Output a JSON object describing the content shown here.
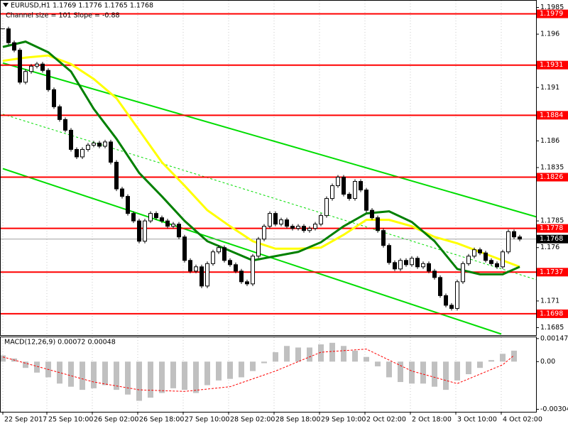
{
  "chart_data": {
    "type": "candlestick",
    "title": "EURUSD,H1 1.1769 1.1776 1.1765 1.1768",
    "subtitle": "Channel size = 101 Slope = -0.88",
    "close": [
      1.1965,
      1.1952,
      1.1945,
      1.1915,
      1.1925,
      1.193,
      1.1932,
      1.1926,
      1.1908,
      1.1892,
      1.188,
      1.187,
      1.1852,
      1.1845,
      1.1852,
      1.1856,
      1.1858,
      1.1855,
      1.1859,
      1.184,
      1.1815,
      1.1808,
      1.1792,
      1.1785,
      1.1766,
      1.1785,
      1.1792,
      1.1788,
      1.1785,
      1.178,
      1.1782,
      1.177,
      1.1748,
      1.1738,
      1.1742,
      1.1724,
      1.1745,
      1.1756,
      1.176,
      1.1748,
      1.1744,
      1.1738,
      1.1728,
      1.1726,
      1.1752,
      1.1768,
      1.178,
      1.1792,
      1.1782,
      1.1786,
      1.178,
      1.1778,
      1.178,
      1.1776,
      1.1778,
      1.1782,
      1.179,
      1.1806,
      1.1818,
      1.1826,
      1.181,
      1.1806,
      1.1822,
      1.1814,
      1.1795,
      1.1788,
      1.1776,
      1.1762,
      1.1746,
      1.174,
      1.1748,
      1.1744,
      1.175,
      1.1742,
      1.1745,
      1.1738,
      1.1732,
      1.1715,
      1.1706,
      1.1703,
      1.1728,
      1.1745,
      1.1752,
      1.1758,
      1.1755,
      1.1748,
      1.1745,
      1.1742,
      1.1756,
      1.1775,
      1.177,
      1.1768
    ],
    "xlim": [
      -0.5,
      93.875
    ],
    "ylim": [
      1.1678,
      1.1992
    ],
    "yticks": [
      1.1985,
      1.196,
      1.191,
      1.186,
      1.1835,
      1.1785,
      1.176,
      1.171,
      1.1685
    ],
    "xticks": [
      {
        "value": 0,
        "label": "22 Sep 2017"
      },
      {
        "value": 7.75,
        "label": "25 Sep 10:00"
      },
      {
        "value": 15.75,
        "label": "26 Sep 02:00"
      },
      {
        "value": 23.75,
        "label": "26 Sep 18:00"
      },
      {
        "value": 31.75,
        "label": "27 Sep 10:00"
      },
      {
        "value": 39.75,
        "label": "28 Sep 02:00"
      },
      {
        "value": 47.75,
        "label": "28 Sep 18:00"
      },
      {
        "value": 55.75,
        "label": "29 Sep 10:00"
      },
      {
        "value": 63.75,
        "label": "2 Oct 02:00"
      },
      {
        "value": 71.75,
        "label": "2 Oct 18:00"
      },
      {
        "value": 79.75,
        "label": "3 Oct 10:00"
      },
      {
        "value": 87.75,
        "label": "4 Oct 02:00"
      }
    ],
    "grid": true,
    "levels": [
      1.1979,
      1.1931,
      1.1884,
      1.1826,
      1.1778,
      1.1737,
      1.1698
    ],
    "level_color": "#ff0000",
    "current_price": 1.1768,
    "moving_averages": [
      {
        "color": "#ffff00",
        "x": [
          0,
          4,
          8,
          12,
          16,
          20,
          24,
          28,
          32,
          36,
          40,
          44,
          48,
          52,
          56,
          60,
          64,
          68,
          72,
          76,
          80,
          84,
          88,
          91
        ],
        "values": [
          1.1935,
          1.1938,
          1.194,
          1.1932,
          1.1918,
          1.19,
          1.187,
          1.184,
          1.1818,
          1.1795,
          1.178,
          1.1766,
          1.1759,
          1.1759,
          1.176,
          1.1772,
          1.1786,
          1.1786,
          1.178,
          1.177,
          1.1764,
          1.1756,
          1.1748,
          1.1742
        ]
      },
      {
        "color": "#008000",
        "x": [
          0,
          4,
          8,
          12,
          16,
          20,
          24,
          28,
          32,
          36,
          40,
          44,
          48,
          52,
          56,
          60,
          64,
          68,
          72,
          76,
          80,
          84,
          88,
          91
        ],
        "values": [
          1.1948,
          1.1953,
          1.1943,
          1.1925,
          1.189,
          1.1862,
          1.183,
          1.1808,
          1.1785,
          1.1766,
          1.1757,
          1.1748,
          1.1752,
          1.1756,
          1.1765,
          1.178,
          1.1792,
          1.1794,
          1.1784,
          1.1766,
          1.174,
          1.1735,
          1.1735,
          1.1742
        ]
      }
    ],
    "channel": {
      "color": "#00dd00",
      "lines": [
        {
          "x": [
            0,
            95.75
          ],
          "values": [
            1.1933,
            1.1786
          ]
        },
        {
          "x": [
            0,
            87.75
          ],
          "values": [
            1.1834,
            1.1679
          ]
        },
        {
          "x": [
            0,
            94.5
          ],
          "values": [
            1.1885,
            1.1729
          ],
          "dashed": true
        }
      ]
    },
    "macd": {
      "title": "MACD(12,26,9) 0.00072 0.00048",
      "histogram": [
        0.0004,
        0.0002,
        -0.0004,
        -0.0007,
        -0.001,
        -0.0014,
        -0.0016,
        -0.0018,
        -0.0017,
        -0.0015,
        -0.0018,
        -0.0021,
        -0.0025,
        -0.0023,
        -0.002,
        -0.0017,
        -0.0018,
        -0.002,
        -0.0015,
        -0.0012,
        -0.0011,
        -0.001,
        -0.0006,
        -0.0001,
        0.0006,
        0.001,
        0.0009,
        0.0009,
        0.0011,
        0.0012,
        0.001,
        0.0007,
        0.0003,
        -0.0003,
        -0.001,
        -0.0013,
        -0.0014,
        -0.0014,
        -0.0016,
        -0.0018,
        -0.0012,
        -0.0008,
        -0.0004,
        0.0001,
        0.0005,
        0.0007
      ],
      "hist_color": "#c0c0c0",
      "signal": {
        "color": "#ff0000",
        "x": [
          0,
          4,
          8,
          12,
          16,
          20,
          24,
          28,
          32,
          36,
          40,
          44,
          45
        ],
        "values": [
          0.0003,
          -0.0005,
          -0.0013,
          -0.0018,
          -0.0019,
          -0.0016,
          -0.0006,
          0.0006,
          0.0008,
          -0.0006,
          -0.0014,
          -0.0002,
          0.0004
        ]
      },
      "ylim": [
        -0.0032,
        0.0016
      ],
      "yticks": [
        0.00147,
        {
          "value": 0,
          "label": "0.00"
        },
        -0.00304
      ]
    }
  }
}
